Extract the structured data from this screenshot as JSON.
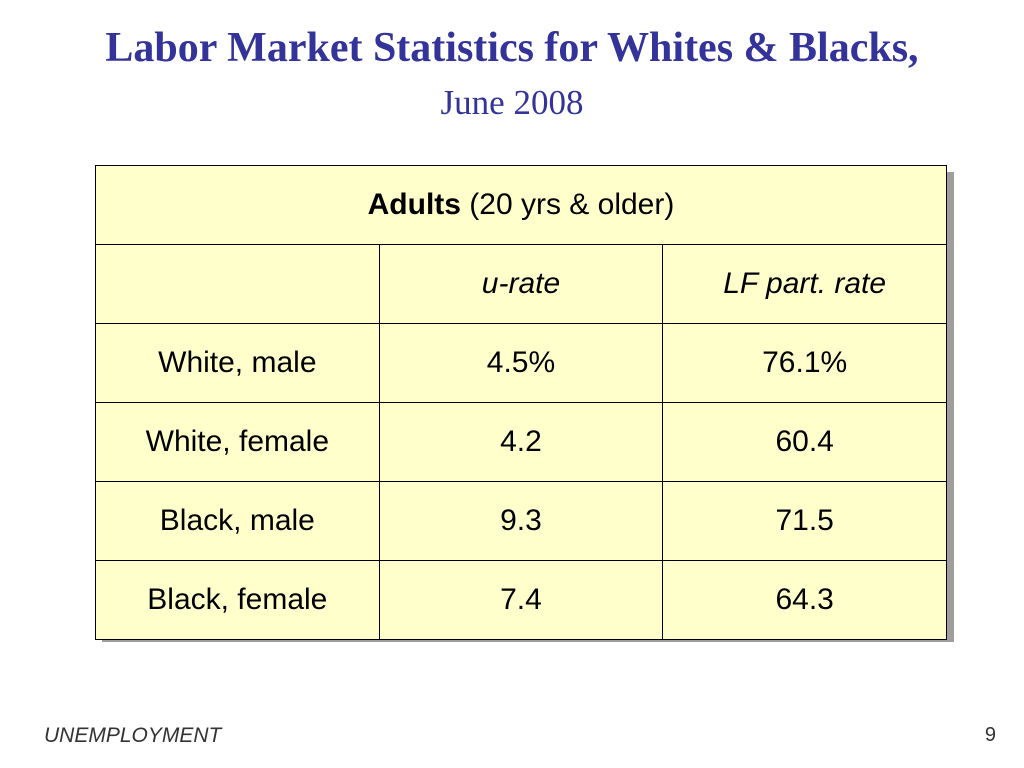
{
  "title": "Labor Market Statistics for Whites & Blacks,",
  "subtitle": "June 2008",
  "table": {
    "header_bold": "Adults",
    "header_rest": " (20 yrs & older)",
    "columns": [
      "",
      "u-rate",
      "LF part. rate"
    ],
    "rows": [
      {
        "label": "White, male",
        "u_rate": "4.5%",
        "lf_rate": "76.1%"
      },
      {
        "label": "White, female",
        "u_rate": "4.2",
        "lf_rate": "60.4"
      },
      {
        "label": "Black, male",
        "u_rate": "9.3",
        "lf_rate": "71.5"
      },
      {
        "label": "Black, female",
        "u_rate": "7.4",
        "lf_rate": "64.3"
      }
    ]
  },
  "footer": {
    "section": "UNEMPLOYMENT",
    "page_number": "9"
  },
  "colors": {
    "title": "#333399",
    "table_fill": "#ffffcc",
    "shadow": "#9e9e9e"
  }
}
